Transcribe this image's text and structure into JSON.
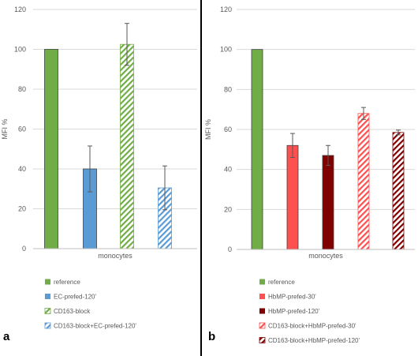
{
  "chart_data": [
    {
      "panel_label": "a",
      "type": "bar",
      "ylabel": "MFI %",
      "ylim": [
        0,
        120
      ],
      "yticks": [
        0,
        20,
        40,
        60,
        80,
        100,
        120
      ],
      "xlabel": "monocytes",
      "grid": true,
      "legend_position": "bottom",
      "series": [
        {
          "name": "reference",
          "value": 100,
          "error": 0,
          "color": "#70ad47",
          "fill": "solid"
        },
        {
          "name": "EC-prefed-120'",
          "value": 40,
          "error": 11.5,
          "color": "#5b9bd5",
          "fill": "solid"
        },
        {
          "name": "CD163-block",
          "value": 102.5,
          "error": 10.5,
          "color": "#70ad47",
          "fill": "hatch"
        },
        {
          "name": "CD163-block+EC-prefed-120'",
          "value": 30.5,
          "error": 11,
          "color": "#5b9bd5",
          "fill": "hatch"
        }
      ]
    },
    {
      "panel_label": "b",
      "type": "bar",
      "ylabel": "MFI %",
      "ylim": [
        0,
        120
      ],
      "yticks": [
        0,
        20,
        40,
        60,
        80,
        100,
        120
      ],
      "xlabel": "monocytes",
      "grid": true,
      "legend_position": "bottom",
      "series": [
        {
          "name": "reference",
          "value": 100,
          "error": 0,
          "color": "#70ad47",
          "fill": "solid"
        },
        {
          "name": "HbMP-prefed-30'",
          "value": 52,
          "error": 6,
          "color": "#ff5050",
          "fill": "solid"
        },
        {
          "name": "HbMP-prefed-120'",
          "value": 47,
          "error": 5,
          "color": "#800000",
          "fill": "solid"
        },
        {
          "name": "CD163-block+HbMP-prefed-30'",
          "value": 68,
          "error": 3,
          "color": "#ff5050",
          "fill": "hatch"
        },
        {
          "name": "CD163-block+HbMP-prefed-120'",
          "value": 58.5,
          "error": 1.2,
          "color": "#800000",
          "fill": "hatch"
        }
      ]
    }
  ]
}
